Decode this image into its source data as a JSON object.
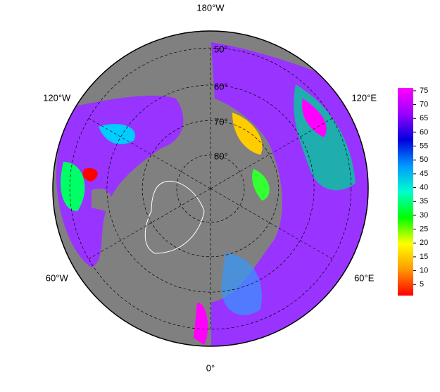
{
  "map": {
    "longitude_labels": [
      {
        "value": -180,
        "label": "180°W"
      },
      {
        "value": -120,
        "label": "120°W"
      },
      {
        "value": 120,
        "label": "120°E"
      },
      {
        "value": -60,
        "label": "60°W"
      },
      {
        "value": 60,
        "label": "60°E"
      },
      {
        "value": 0,
        "label": "0°"
      }
    ],
    "latitude_labels": [
      {
        "value": 50,
        "label": "50°"
      },
      {
        "value": 60,
        "label": "60°"
      },
      {
        "value": 70,
        "label": "70°"
      },
      {
        "value": 80,
        "label": "80°"
      }
    ]
  },
  "colorbar": {
    "lim": [
      1,
      76
    ],
    "ticks": [
      5,
      10,
      15,
      20,
      25,
      30,
      35,
      40,
      45,
      50,
      55,
      60,
      65,
      70,
      75
    ],
    "colors": [
      "#ff0000",
      "#ff9900",
      "#ffff00",
      "#00ff00",
      "#00ffcc",
      "#0099ff",
      "#0000dd",
      "#9900ff",
      "#ff00ff"
    ]
  }
}
